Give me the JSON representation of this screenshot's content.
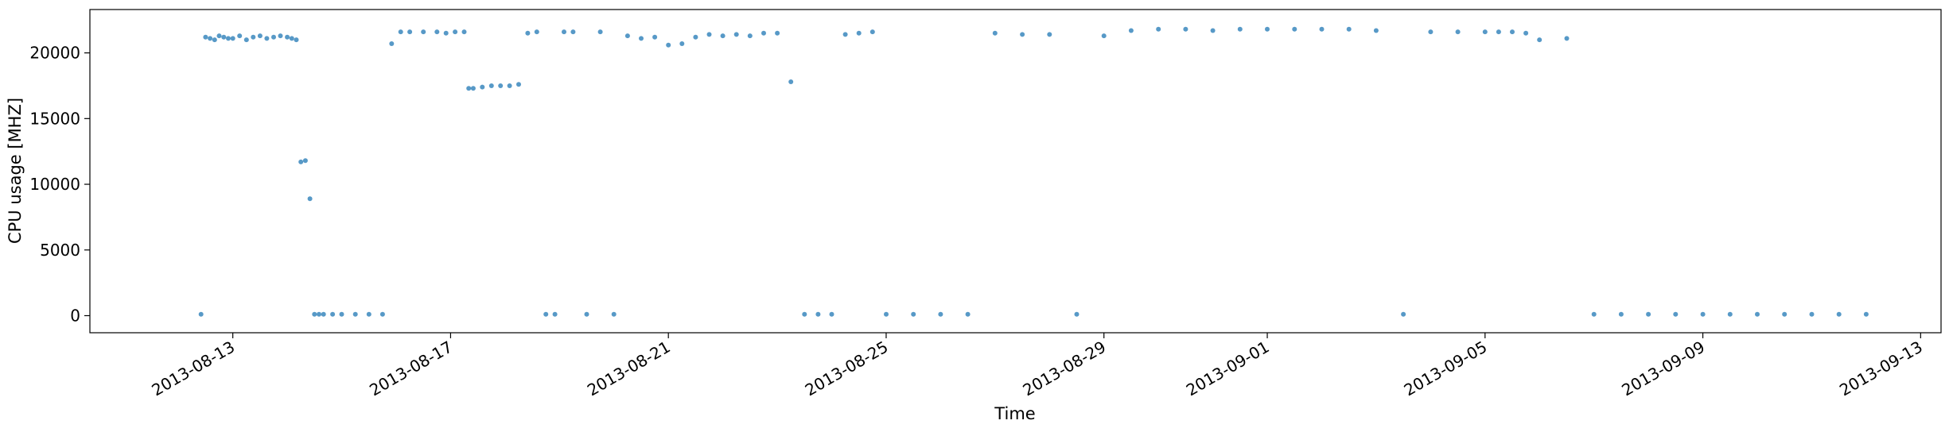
{
  "chart_data": {
    "type": "scatter",
    "title": "",
    "xlabel": "Time",
    "ylabel": "CPU usage [MHZ]",
    "xlim": [
      "2013-08-10T09:00",
      "2013-09-13T09:00"
    ],
    "ylim": [
      -1300,
      23300
    ],
    "grid": false,
    "legend": "none",
    "color": "#1f77b4",
    "x_ticks": [
      {
        "date": "2013-08-13",
        "label": "2013-08-13"
      },
      {
        "date": "2013-08-17",
        "label": "2013-08-17"
      },
      {
        "date": "2013-08-21",
        "label": "2013-08-21"
      },
      {
        "date": "2013-08-25",
        "label": "2013-08-25"
      },
      {
        "date": "2013-08-29",
        "label": "2013-08-29"
      },
      {
        "date": "2013-09-01",
        "label": "2013-09-01"
      },
      {
        "date": "2013-09-05",
        "label": "2013-09-05"
      },
      {
        "date": "2013-09-09",
        "label": "2013-09-09"
      },
      {
        "date": "2013-09-13",
        "label": "2013-09-13"
      }
    ],
    "y_ticks": [
      {
        "value": 0,
        "label": "0"
      },
      {
        "value": 5000,
        "label": "5000"
      },
      {
        "value": 10000,
        "label": "10000"
      },
      {
        "value": 15000,
        "label": "15000"
      },
      {
        "value": 20000,
        "label": "20000"
      }
    ],
    "series": [
      {
        "x": [
          "2013-08-12T10:00",
          "2013-08-12T12:00",
          "2013-08-12T14:00",
          "2013-08-12T16:00",
          "2013-08-12T18:00",
          "2013-08-12T20:00",
          "2013-08-12T22:00",
          "2013-08-13T00:00",
          "2013-08-13T03:00",
          "2013-08-13T06:00",
          "2013-08-13T09:00",
          "2013-08-13T12:00",
          "2013-08-13T15:00",
          "2013-08-13T18:00",
          "2013-08-13T21:00",
          "2013-08-14T00:00",
          "2013-08-14T02:00",
          "2013-08-14T04:00",
          "2013-08-14T06:00",
          "2013-08-14T08:00",
          "2013-08-14T10:00",
          "2013-08-14T12:00",
          "2013-08-14T14:00",
          "2013-08-14T16:00",
          "2013-08-14T20:00",
          "2013-08-15T00:00",
          "2013-08-15T06:00",
          "2013-08-15T12:00",
          "2013-08-15T18:00",
          "2013-08-15T22:00",
          "2013-08-16T02:00",
          "2013-08-16T06:00",
          "2013-08-16T12:00",
          "2013-08-16T18:00",
          "2013-08-16T22:00",
          "2013-08-17T02:00",
          "2013-08-17T06:00",
          "2013-08-17T08:00",
          "2013-08-17T10:00",
          "2013-08-17T14:00",
          "2013-08-17T18:00",
          "2013-08-17T22:00",
          "2013-08-18T02:00",
          "2013-08-18T06:00",
          "2013-08-18T10:00",
          "2013-08-18T14:00",
          "2013-08-18T18:00",
          "2013-08-18T22:00",
          "2013-08-19T02:00",
          "2013-08-19T06:00",
          "2013-08-19T12:00",
          "2013-08-19T18:00",
          "2013-08-20T00:00",
          "2013-08-20T06:00",
          "2013-08-20T12:00",
          "2013-08-20T18:00",
          "2013-08-21T00:00",
          "2013-08-21T06:00",
          "2013-08-21T12:00",
          "2013-08-21T18:00",
          "2013-08-22T00:00",
          "2013-08-22T06:00",
          "2013-08-22T12:00",
          "2013-08-22T18:00",
          "2013-08-23T00:00",
          "2013-08-23T06:00",
          "2013-08-23T12:00",
          "2013-08-23T18:00",
          "2013-08-24T00:00",
          "2013-08-24T06:00",
          "2013-08-24T12:00",
          "2013-08-24T18:00",
          "2013-08-25T00:00",
          "2013-08-25T12:00",
          "2013-08-26T00:00",
          "2013-08-26T12:00",
          "2013-08-27T00:00",
          "2013-08-27T12:00",
          "2013-08-28T00:00",
          "2013-08-28T12:00",
          "2013-08-29T00:00",
          "2013-08-29T12:00",
          "2013-08-30T00:00",
          "2013-08-30T12:00",
          "2013-08-31T00:00",
          "2013-08-31T12:00",
          "2013-09-01T00:00",
          "2013-09-01T12:00",
          "2013-09-02T00:00",
          "2013-09-02T12:00",
          "2013-09-03T00:00",
          "2013-09-03T12:00",
          "2013-09-04T00:00",
          "2013-09-04T12:00",
          "2013-09-05T00:00",
          "2013-09-05T06:00",
          "2013-09-05T12:00",
          "2013-09-05T18:00",
          "2013-09-06T00:00",
          "2013-09-06T12:00",
          "2013-09-07T00:00",
          "2013-09-07T12:00",
          "2013-09-08T00:00",
          "2013-09-08T12:00",
          "2013-09-09T00:00",
          "2013-09-09T12:00",
          "2013-09-10T00:00",
          "2013-09-10T12:00",
          "2013-09-11T00:00",
          "2013-09-11T12:00",
          "2013-09-12T00:00"
        ],
        "y": [
          100,
          21200,
          21100,
          21000,
          21300,
          21200,
          21100,
          21100,
          21300,
          21000,
          21200,
          21300,
          21100,
          21200,
          21300,
          21200,
          21100,
          21000,
          11700,
          11800,
          8900,
          100,
          100,
          100,
          100,
          100,
          100,
          100,
          100,
          20700,
          21600,
          21600,
          21600,
          21600,
          21500,
          21600,
          21600,
          17300,
          17300,
          17400,
          17500,
          17500,
          17500,
          17600,
          21500,
          21600,
          100,
          100,
          21600,
          21600,
          100,
          21600,
          100,
          21300,
          21100,
          21200,
          20600,
          20700,
          21200,
          21400,
          21300,
          21400,
          21300,
          21500,
          21500,
          17800,
          100,
          100,
          100,
          21400,
          21500,
          21600,
          100,
          100,
          100,
          100,
          21500,
          21400,
          21400,
          100,
          21300,
          21700,
          21800,
          21800,
          21700,
          21800,
          21800,
          21800,
          21800,
          21800,
          21700,
          100,
          21600,
          21600,
          21600,
          21600,
          21600,
          21500,
          21000,
          21100,
          100,
          100,
          100,
          100,
          100,
          100,
          100,
          100,
          100,
          100,
          100
        ]
      }
    ]
  }
}
